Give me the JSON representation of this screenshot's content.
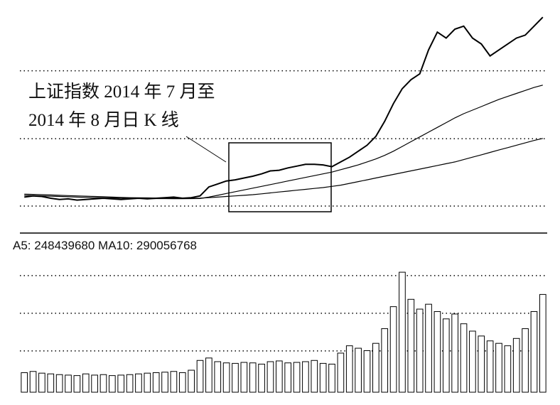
{
  "chart_data": [
    {
      "type": "line",
      "annotation": [
        "上证指数 2014 年 7 月至",
        "2014 年 8 月日 K 线"
      ],
      "ylim": [
        1760,
        5160
      ],
      "yticks": [
        1880,
        3010,
        4150
      ],
      "grid": true,
      "series": [
        {
          "color": "#000000",
          "values": [
            2030,
            2050,
            2040,
            2010,
            1990,
            2000,
            1980,
            1990,
            2000,
            2010,
            2000,
            1990,
            2000,
            2010,
            2000,
            2010,
            2020,
            2030,
            2010,
            2020,
            2050,
            2200,
            2250,
            2300,
            2320,
            2350,
            2380,
            2420,
            2470,
            2480,
            2520,
            2550,
            2580,
            2580,
            2570,
            2540,
            2620,
            2700,
            2800,
            2900,
            3050,
            3300,
            3600,
            3850,
            4000,
            4100,
            4500,
            4800,
            4700,
            4850,
            4900,
            4700,
            4600,
            4400,
            4500,
            4600,
            4700,
            4750,
            4900,
            5050
          ]
        },
        {
          "color": "#000000",
          "values": [
            2060,
            2055,
            2050,
            2045,
            2040,
            2035,
            2030,
            2025,
            2020,
            2018,
            2015,
            2012,
            2010,
            2008,
            2006,
            2005,
            2004,
            2003,
            2003,
            2004,
            2006,
            2030,
            2060,
            2090,
            2120,
            2150,
            2180,
            2210,
            2240,
            2270,
            2300,
            2330,
            2360,
            2390,
            2420,
            2450,
            2490,
            2530,
            2570,
            2620,
            2670,
            2730,
            2800,
            2880,
            2960,
            3040,
            3120,
            3200,
            3280,
            3360,
            3430,
            3490,
            3550,
            3610,
            3670,
            3720,
            3770,
            3820,
            3870,
            3910
          ]
        },
        {
          "color": "#000000",
          "values": [
            2080,
            2075,
            2070,
            2065,
            2060,
            2055,
            2050,
            2045,
            2040,
            2035,
            2030,
            2025,
            2020,
            2018,
            2016,
            2014,
            2012,
            2010,
            2010,
            2010,
            2012,
            2020,
            2030,
            2040,
            2050,
            2060,
            2070,
            2085,
            2100,
            2115,
            2130,
            2145,
            2160,
            2175,
            2190,
            2210,
            2230,
            2260,
            2290,
            2320,
            2350,
            2380,
            2410,
            2440,
            2470,
            2500,
            2530,
            2560,
            2590,
            2620,
            2660,
            2700,
            2740,
            2780,
            2820,
            2860,
            2900,
            2940,
            2980,
            3015
          ]
        }
      ]
    },
    {
      "type": "bar",
      "legend_text": "A5: 248439680 MA10: 290056768",
      "ylim": [
        0,
        500000000
      ],
      "yticks": [
        169000000,
        323000000,
        477000000
      ],
      "grid": true,
      "color": "#000000",
      "values": [
        80000000,
        85000000,
        78000000,
        75000000,
        72000000,
        70000000,
        68000000,
        75000000,
        70000000,
        72000000,
        68000000,
        70000000,
        72000000,
        75000000,
        78000000,
        80000000,
        82000000,
        85000000,
        80000000,
        90000000,
        130000000,
        140000000,
        125000000,
        120000000,
        118000000,
        122000000,
        120000000,
        115000000,
        125000000,
        128000000,
        120000000,
        122000000,
        125000000,
        130000000,
        118000000,
        115000000,
        160000000,
        190000000,
        180000000,
        170000000,
        200000000,
        260000000,
        350000000,
        491000000,
        380000000,
        340000000,
        360000000,
        330000000,
        300000000,
        320000000,
        280000000,
        250000000,
        230000000,
        210000000,
        200000000,
        190000000,
        220000000,
        260000000,
        330000000,
        400000000
      ]
    }
  ]
}
